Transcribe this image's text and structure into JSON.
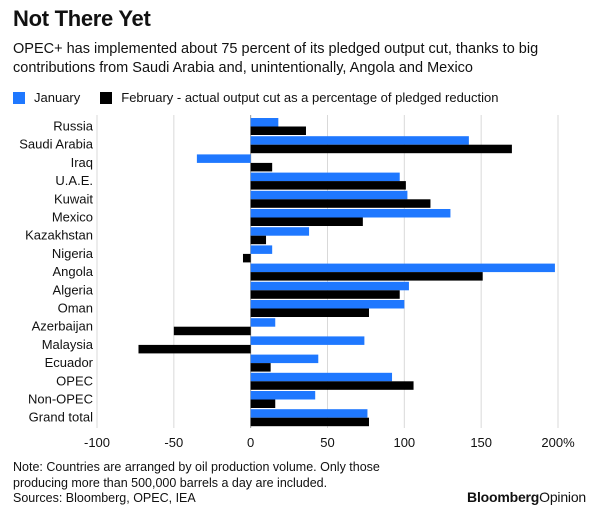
{
  "header": {
    "title": "Not There Yet",
    "subtitle": "OPEC+ has implemented about 75 percent of its pledged output cut, thanks to big contributions from Saudi Arabia and, unintentionally, Angola and Mexico"
  },
  "footer": {
    "note_line1": "Note: Countries are arranged by oil production volume. Only those",
    "note_line2": "producing more than 500,000 barrels a day are included.",
    "sources": "Sources: Bloomberg, OPEC, IEA",
    "brand_main": "Bloomberg",
    "brand_suffix": "Opinion"
  },
  "chart_data": {
    "type": "bar",
    "orientation": "horizontal",
    "categories": [
      "Russia",
      "Saudi Arabia",
      "Iraq",
      "U.A.E.",
      "Kuwait",
      "Mexico",
      "Kazakhstan",
      "Nigeria",
      "Angola",
      "Algeria",
      "Oman",
      "Azerbaijan",
      "Malaysia",
      "Ecuador",
      "OPEC",
      "Non-OPEC",
      "Grand total"
    ],
    "series": [
      {
        "name": "January",
        "color": "#1f78ff",
        "values": [
          18,
          142,
          -35,
          97,
          102,
          130,
          38,
          14,
          198,
          103,
          100,
          16,
          74,
          44,
          92,
          42,
          76
        ]
      },
      {
        "name": "February - actual output cut as a percentage of pledged reduction",
        "color": "#000000",
        "values": [
          36,
          170,
          14,
          101,
          117,
          73,
          10,
          -5,
          151,
          97,
          77,
          -50,
          -73,
          13,
          106,
          16,
          77
        ]
      }
    ],
    "x_ticks": [
      "-100",
      "-50",
      "0",
      "50",
      "100",
      "150",
      "200%"
    ],
    "x_tick_values": [
      -100,
      -50,
      0,
      50,
      100,
      150,
      200
    ],
    "xlim": [
      -100,
      200
    ],
    "grid": true,
    "legend_position": "top-left"
  }
}
